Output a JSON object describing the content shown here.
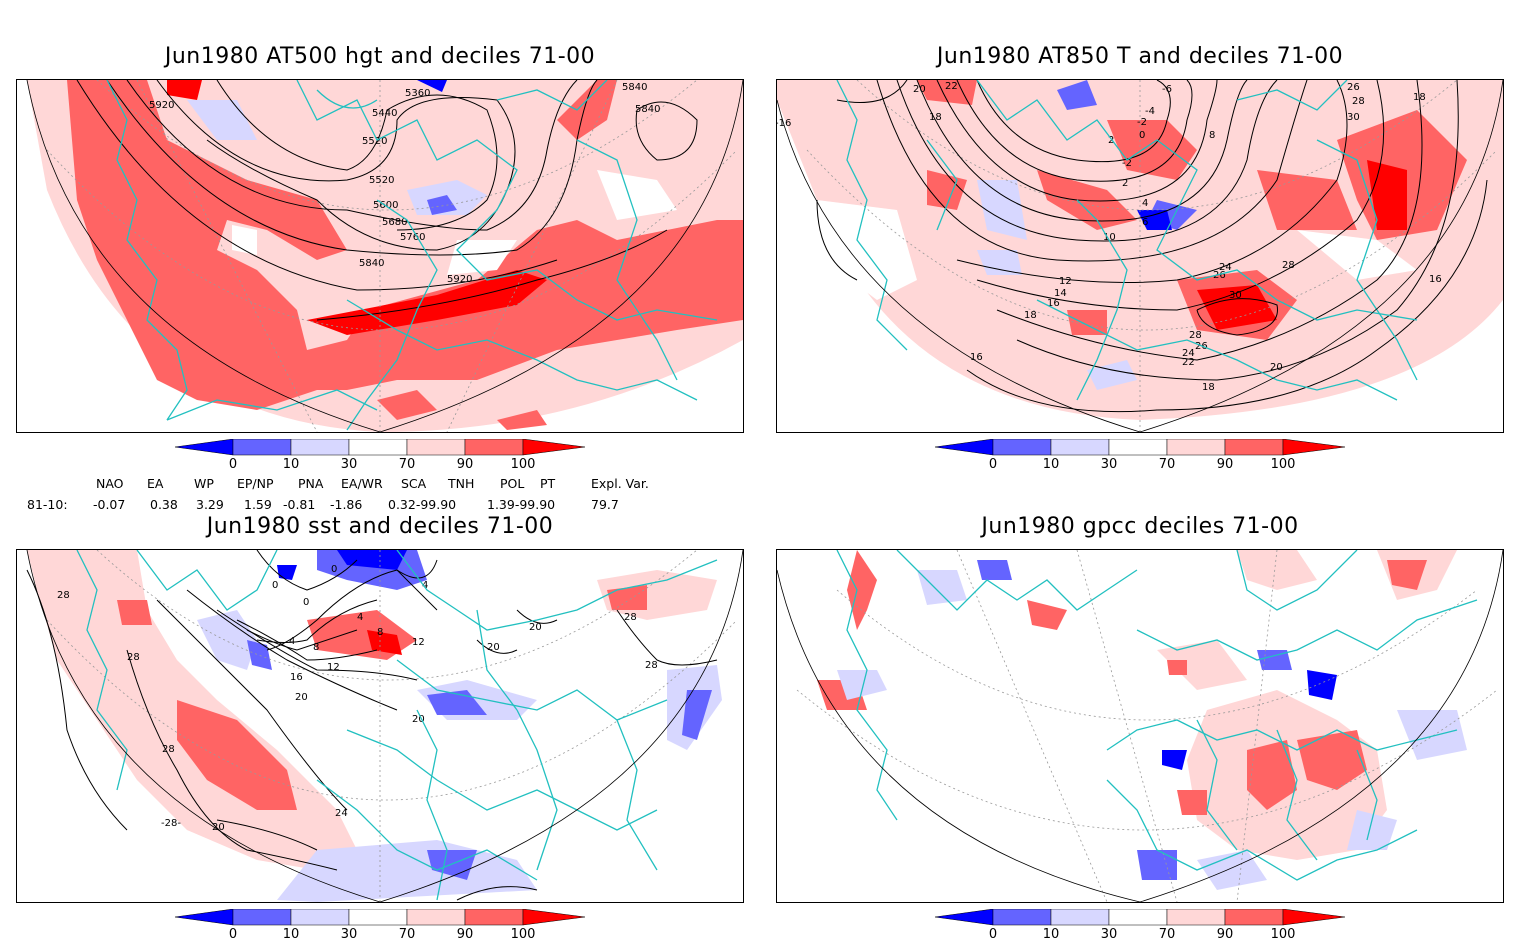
{
  "panels": [
    {
      "title": "Jun1980 AT500 hgt and deciles 71-00",
      "labels": [
        "5920",
        "5360",
        "5440",
        "5520",
        "5520",
        "5600",
        "5680",
        "5760",
        "5840",
        "5920",
        "5840",
        "5840"
      ]
    },
    {
      "title": "Jun1980 AT850 T and deciles 71-00",
      "labels": [
        "20",
        "22",
        "18",
        "-16",
        "-6",
        "-4",
        "-2",
        "2",
        "0",
        "-2",
        "2",
        "6",
        "4",
        "10",
        "12",
        "14",
        "16",
        "18",
        "16",
        "24",
        "26",
        "28",
        "30",
        "28",
        "26",
        "24",
        "22",
        "20",
        "18",
        "8",
        "26",
        "28",
        "30",
        "18",
        "16"
      ]
    },
    {
      "title": "Jun1980 sst and deciles 71-00",
      "labels": [
        "28",
        "0",
        "0",
        "4",
        "0",
        "4",
        "8",
        "12",
        "4",
        "8",
        "12",
        "16",
        "20",
        "20",
        "20",
        "28",
        "28",
        "28",
        "24",
        "28",
        "-28-",
        "20",
        "20"
      ]
    },
    {
      "title": "Jun1980 gpcc deciles 71-00",
      "labels": []
    }
  ],
  "colorbar": {
    "ticks": [
      "0",
      "10",
      "30",
      "70",
      "90",
      "100"
    ],
    "colors": [
      "#0000ff",
      "#6464ff",
      "#d7d7ff",
      "#ffffff",
      "#ffd7d7",
      "#ff6464",
      "#ff0000"
    ]
  },
  "indices": {
    "headers": [
      "NAO",
      "EA",
      "WP",
      "EP/NP",
      "PNA",
      "EA/WR",
      "SCA",
      "TNH",
      "POL",
      "PT",
      "Expl. Var."
    ],
    "row_label": "81-10:",
    "values": [
      "-0.07",
      "0.38",
      "3.29",
      "1.59",
      "-0.81",
      "-1.86",
      "0.32-99.90",
      "1.39-99.90",
      "79.7"
    ]
  },
  "colors": {
    "coast": "#22c0c0",
    "contour": "#000000",
    "grid": "#999999"
  }
}
